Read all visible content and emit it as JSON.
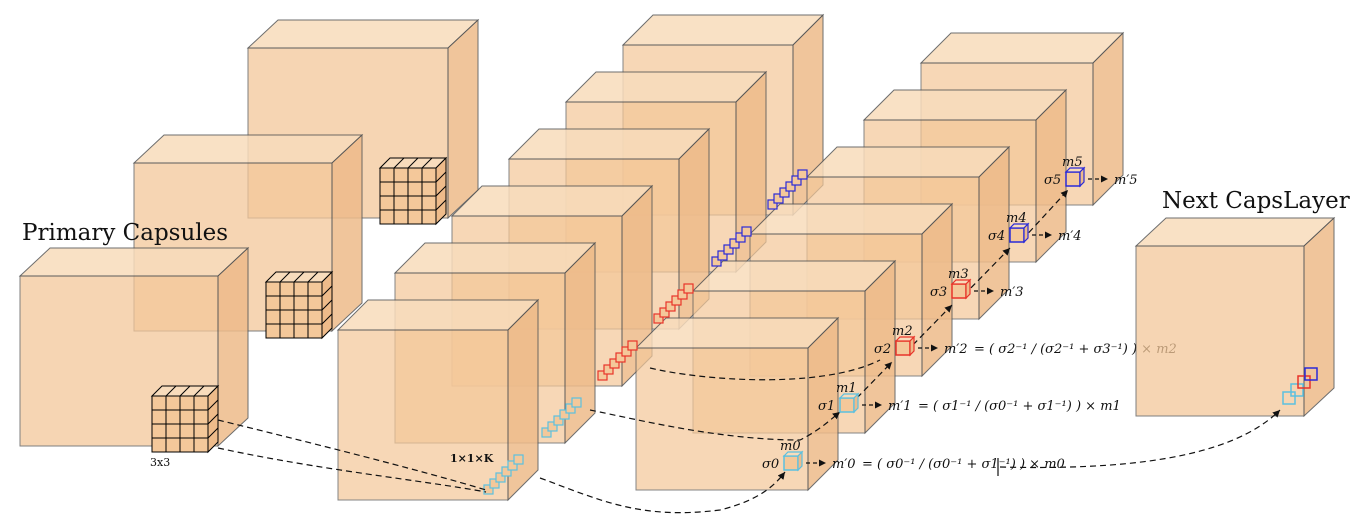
{
  "labels": {
    "primary_capsules": "Primary Capsules",
    "next_caps_layer": "Next CapsLayer",
    "kernel_size": "3x3",
    "vector_shape": "1×1×K"
  },
  "capsules": [
    {
      "m": "m0",
      "sigma": "σ0",
      "out": "m′0",
      "formula": "= ( σ0⁻¹ / (σ0⁻¹ + σ1⁻¹) ) × m0",
      "color": "#5bc0e0"
    },
    {
      "m": "m1",
      "sigma": "σ1",
      "out": "m′1",
      "formula": "= ( σ1⁻¹ / (σ0⁻¹ + σ1⁻¹) ) × m1",
      "color": "#5bc0e0"
    },
    {
      "m": "m2",
      "sigma": "σ2",
      "out": "m′2",
      "formula": "= ( σ2⁻¹ / (σ2⁻¹ + σ3⁻¹) ) × m2",
      "color": "#e8342a"
    },
    {
      "m": "m3",
      "sigma": "σ3",
      "out": "m′3",
      "formula": "",
      "color": "#e8342a"
    },
    {
      "m": "m4",
      "sigma": "σ4",
      "out": "m′4",
      "formula": "",
      "color": "#2a2ad8"
    },
    {
      "m": "m5",
      "sigma": "σ5",
      "out": "m′5",
      "formula": "",
      "color": "#2a2ad8"
    }
  ],
  "colors": {
    "cube_front": "#f4c89a",
    "cube_top": "#f8dcbc",
    "cube_side": "#eebb8a",
    "edge": "#555555",
    "grid": "#000000"
  }
}
